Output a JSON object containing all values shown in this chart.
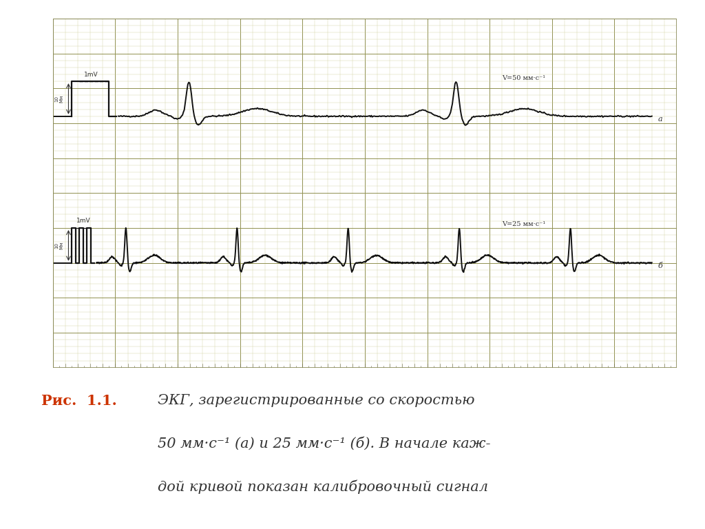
{
  "paper_bg": "#e8e8c0",
  "grid_minor_color": "#c8c890",
  "grid_major_color": "#909050",
  "ecg_color": "#111111",
  "outer_bg": "#ffffff",
  "border_color": "#888855",
  "speed_a": "V=50 мм·c⁻¹",
  "speed_b": "V=25 мм·c⁻¹",
  "label_a": "a",
  "label_b": "б",
  "calib_label": "1mV",
  "caption_bold": "Рис.  1.1.",
  "caption_italic_1": "ЭКГ, зарегистрированные со скоростью",
  "caption_italic_2": "50 мм·c⁻¹ (а) и 25 мм·c⁻¹ (б). В начале каж-",
  "caption_italic_3": "дой кривой показан калибровочный сигнал",
  "caption_color": "#333333",
  "caption_bold_color": "#cc3300"
}
